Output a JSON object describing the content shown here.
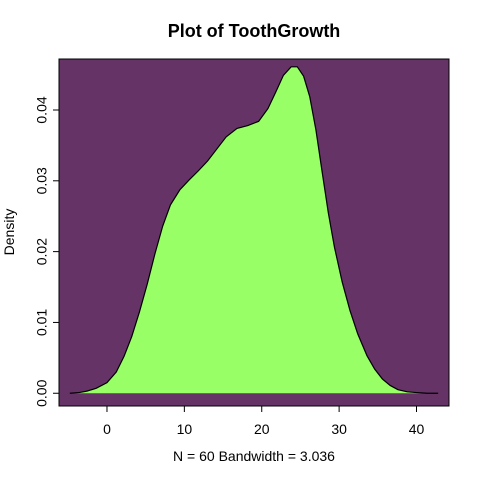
{
  "chart_data": {
    "type": "area",
    "title": "Plot of ToothGrowth",
    "xlabel": "N = 60   Bandwidth = 3.036",
    "ylabel": "Density",
    "xlim": [
      -6.2,
      44.2
    ],
    "ylim": [
      -0.0018,
      0.0472
    ],
    "x_ticks": [
      0,
      10,
      20,
      30,
      40
    ],
    "y_ticks": [
      0.0,
      0.01,
      0.02,
      0.03,
      0.04
    ],
    "x_tick_labels": [
      "0",
      "10",
      "20",
      "30",
      "40"
    ],
    "y_tick_labels": [
      "0.00",
      "0.01",
      "0.02",
      "0.03",
      "0.04"
    ],
    "grid": false,
    "legend": "none",
    "colors": {
      "panel_background": "#663366",
      "fill": "#99ff66",
      "line": "#000000",
      "axis": "#000000"
    },
    "series": [
      {
        "x": [
          -4.8,
          -3.6,
          -2.6,
          -1.4,
          0.0,
          1.2,
          2.2,
          3.2,
          4.2,
          5.2,
          6.2,
          7.2,
          8.2,
          9.4,
          10.6,
          11.8,
          13.0,
          14.2,
          15.4,
          16.8,
          18.2,
          19.6,
          20.8,
          21.8,
          22.8,
          23.8,
          24.6,
          25.4,
          26.2,
          27.0,
          27.8,
          28.6,
          29.4,
          30.4,
          31.4,
          32.4,
          33.6,
          34.6,
          35.6,
          36.6,
          37.6,
          38.8,
          40.0,
          41.4,
          42.8
        ],
        "values": [
          0.0,
          0.0001,
          0.0003,
          0.0007,
          0.0015,
          0.003,
          0.0052,
          0.008,
          0.0115,
          0.0154,
          0.0197,
          0.0236,
          0.0266,
          0.0287,
          0.0301,
          0.0314,
          0.0328,
          0.0345,
          0.0362,
          0.0374,
          0.0378,
          0.0384,
          0.0402,
          0.0425,
          0.0449,
          0.0461,
          0.0461,
          0.0448,
          0.0419,
          0.0372,
          0.0313,
          0.0255,
          0.0206,
          0.0157,
          0.0117,
          0.0084,
          0.0053,
          0.0034,
          0.002,
          0.0011,
          0.0005,
          0.0002,
          0.0001,
          0.0,
          0.0
        ]
      }
    ]
  }
}
